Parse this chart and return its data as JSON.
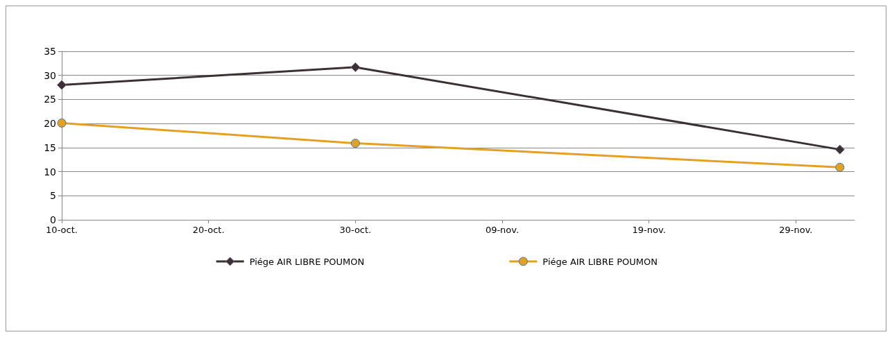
{
  "chart_data": {
    "type": "line",
    "x": [
      "--10-10",
      "--10-30",
      "--12-02"
    ],
    "series": [
      {
        "name": "Piége AIR LIBRE POUMON",
        "color": "#3b3130",
        "marker": "diamond",
        "values": [
          28,
          31.7,
          14.6
        ]
      },
      {
        "name": "Piége AIR LIBRE POUMON",
        "color": "#e6a020",
        "marker": "circle",
        "values": [
          20.1,
          15.9,
          10.9
        ]
      }
    ],
    "xlim": [
      "--10-10",
      "--12-03"
    ],
    "xticks": [
      {
        "value": "--10-10",
        "label": "10-oct."
      },
      {
        "value": "--10-20",
        "label": "20-oct."
      },
      {
        "value": "--10-30",
        "label": "30-oct."
      },
      {
        "value": "--11-09",
        "label": "09-nov."
      },
      {
        "value": "--11-19",
        "label": "19-nov."
      },
      {
        "value": "--11-29",
        "label": "29-nov."
      }
    ],
    "ylim": [
      0,
      35
    ],
    "yticks": [
      0,
      5,
      10,
      15,
      20,
      25,
      30,
      35
    ],
    "grid": "y",
    "legend": "bottom"
  }
}
